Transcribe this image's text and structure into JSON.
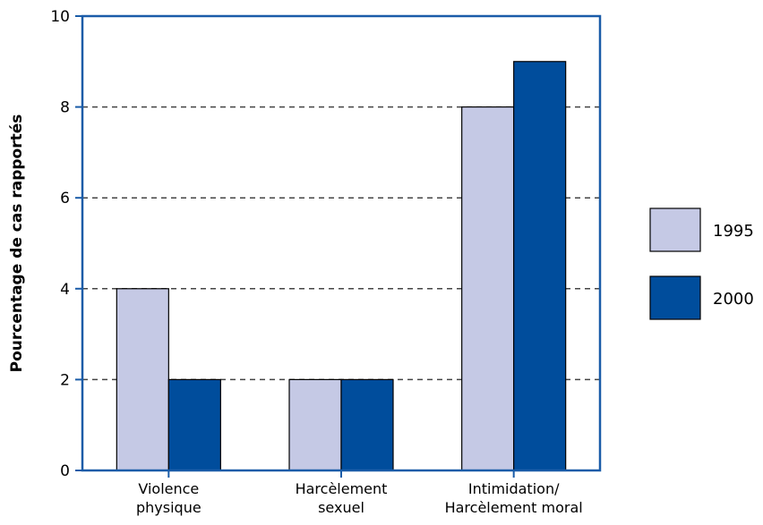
{
  "chart_data": {
    "type": "bar",
    "title": "",
    "xlabel": "",
    "ylabel": "Pourcentage de cas rapportés",
    "ylim": [
      0,
      10
    ],
    "yticks": [
      0,
      2,
      4,
      6,
      8,
      10
    ],
    "grid": "horizontal dashed",
    "legend_position": "right",
    "categories": [
      [
        "Violence",
        "physique"
      ],
      [
        "Harcèlement",
        "sexuel"
      ],
      [
        "Intimidation/",
        "Harcèlement moral"
      ]
    ],
    "series": [
      {
        "name": "1995",
        "color": "#c5c9e5",
        "values": [
          4,
          2,
          8
        ]
      },
      {
        "name": "2000",
        "color": "#004d9c",
        "values": [
          2,
          2,
          9
        ]
      }
    ],
    "colors": {
      "axis": "#1a5ca8",
      "grid": "#444444",
      "bar_stroke": "#000000"
    }
  }
}
